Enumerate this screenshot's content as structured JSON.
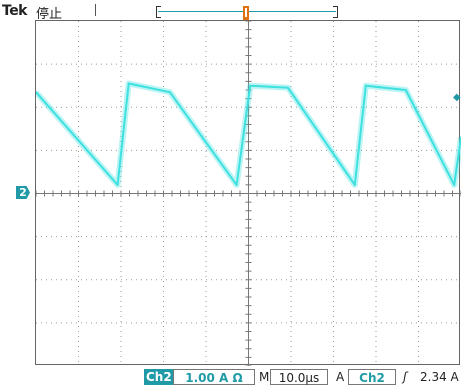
{
  "header": {
    "brand": "Tek",
    "status": "停止",
    "trigger_marker_label": "T"
  },
  "channel_marker": "2",
  "footer": {
    "channel": "Ch2",
    "scale": "1.00 A Ω",
    "timebase_prefix": "M",
    "timebase": "10.0µs",
    "trigger_prefix": "A",
    "trigger_channel": "Ch2",
    "trigger_slope": "ʃ",
    "trigger_level": "2.34 A"
  },
  "colors": {
    "trace": "#3ee0e0",
    "accent": "#1f9aa6",
    "trigger": "#e0710f",
    "grid": "#9a9a9a"
  },
  "chart_data": {
    "type": "line",
    "title": "",
    "xlabel": "",
    "ylabel": "",
    "x_divisions": 10,
    "y_divisions": 8,
    "x_unit": "µs",
    "y_unit": "A",
    "x_per_div": 10.0,
    "y_per_div": 1.0,
    "xlim": [
      -50,
      50
    ],
    "ylim": [
      -4,
      4
    ],
    "grid": true,
    "series": [
      {
        "name": "",
        "x": [
          -50,
          -30.8,
          -28.2,
          -18.5,
          -2.8,
          0.4,
          9.3,
          25.0,
          27.6,
          37.0,
          48.4,
          50
        ],
        "y": [
          2.35,
          0.2,
          2.55,
          2.35,
          0.2,
          2.5,
          2.45,
          0.2,
          2.5,
          2.4,
          0.2,
          1.3
        ]
      }
    ]
  }
}
